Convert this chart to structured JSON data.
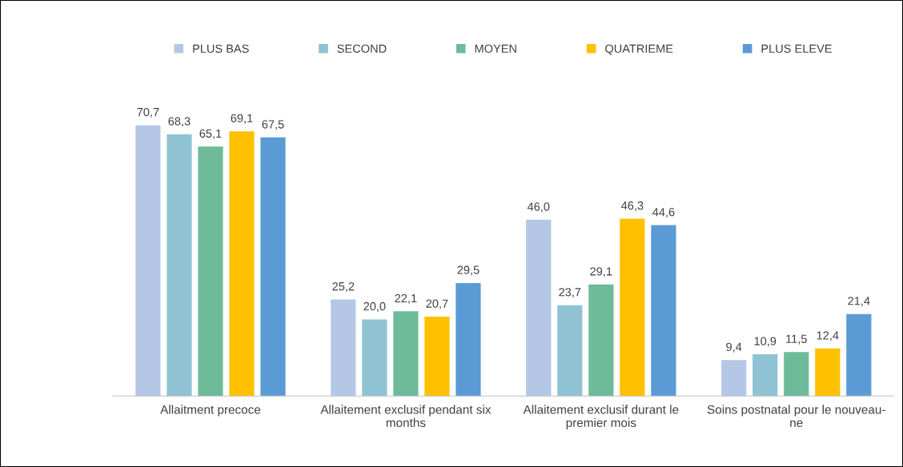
{
  "chart_data": {
    "type": "bar",
    "categories": [
      "Allaitment precoce",
      "Allaitement exclusif pendant six months",
      "Allaitement exclusif durant le premier mois",
      "Soins postnatal pour le nouveau-ne"
    ],
    "series": [
      {
        "name": "PLUS BAS",
        "color": "#b4c7e7",
        "values": [
          70.7,
          25.2,
          46.0,
          9.4
        ],
        "value_labels": [
          "70,7",
          "25,2",
          "46,0",
          "9,4"
        ]
      },
      {
        "name": "SECOND",
        "color": "#8fc3d3",
        "values": [
          68.3,
          20.0,
          23.7,
          10.9
        ],
        "value_labels": [
          "68,3",
          "20,0",
          "23,7",
          "10,9"
        ]
      },
      {
        "name": "MOYEN",
        "color": "#6dbb99",
        "values": [
          65.1,
          22.1,
          29.1,
          11.5
        ],
        "value_labels": [
          "65,1",
          "22,1",
          "29,1",
          "11,5"
        ]
      },
      {
        "name": "QUATRIEME",
        "color": "#ffc000",
        "values": [
          69.1,
          20.7,
          46.3,
          12.4
        ],
        "value_labels": [
          "69,1",
          "20,7",
          "46,3",
          "12,4"
        ]
      },
      {
        "name": "PLUS ELEVE",
        "color": "#5b9bd5",
        "values": [
          67.5,
          29.5,
          44.6,
          21.4
        ],
        "value_labels": [
          "67,5",
          "29,5",
          "44,6",
          "21,4"
        ]
      }
    ],
    "legend": "top"
  }
}
